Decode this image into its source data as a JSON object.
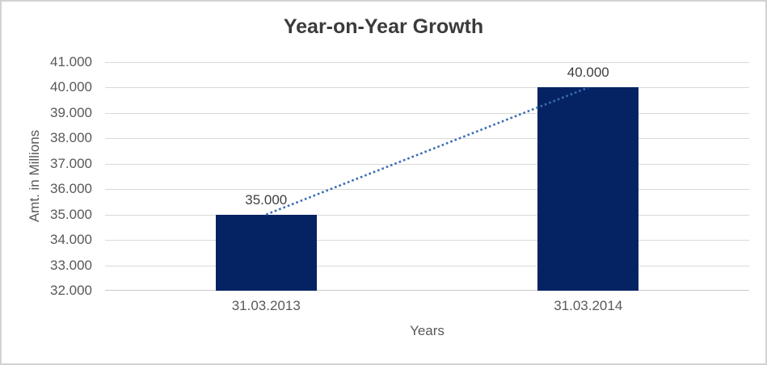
{
  "chart_data": {
    "type": "bar",
    "title": "Year-on-Year Growth",
    "xlabel": "Years",
    "ylabel": "Amt. in Millions",
    "categories": [
      "31.03.2013",
      "31.03.2014"
    ],
    "values": [
      35000,
      40000
    ],
    "data_labels": [
      "35.000",
      "40.000"
    ],
    "ylim": [
      32000,
      41000
    ],
    "ytick_values": [
      41000,
      40000,
      39000,
      38000,
      37000,
      36000,
      35000,
      34000,
      33000,
      32000
    ],
    "ytick_labels": [
      "41.000",
      "40.000",
      "39.000",
      "38.000",
      "37.000",
      "36.000",
      "35.000",
      "34.000",
      "33.000",
      "32.000"
    ],
    "grid": true,
    "legend_position": "none",
    "trendline": {
      "style": "dotted",
      "color": "#3b6cb5",
      "from_point": [
        0,
        35000
      ],
      "to_point": [
        1,
        40000
      ]
    },
    "colors": {
      "bar": "#052363",
      "gridline": "#d9d9d9",
      "axis_line": "#c9c9c9",
      "title_text": "#3b3b3b",
      "tick_text": "#595959",
      "data_label_text": "#404040"
    }
  }
}
